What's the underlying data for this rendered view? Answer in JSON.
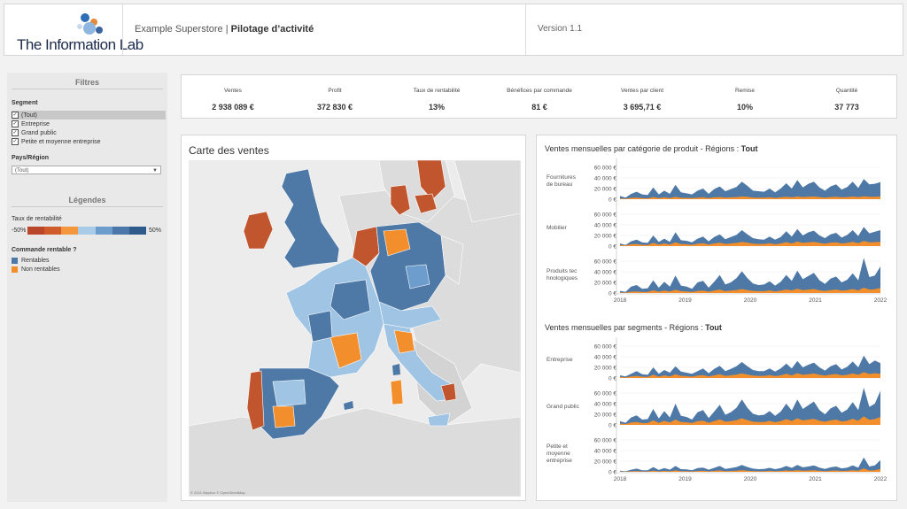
{
  "header": {
    "logo_text": "The Information Lab",
    "title_prefix": "Example Superstore",
    "title_sep": " | ",
    "title_main": "Pilotage d’activité",
    "version": "Version 1.1"
  },
  "sidebar": {
    "filters_title": "Filtres",
    "segment_label": "Segment",
    "segments": [
      "(Tout)",
      "Entreprise",
      "Grand public",
      "Petite et moyenne entreprise"
    ],
    "country_label": "Pays/Région",
    "country_value": "(Tout)",
    "legends_title": "Légendes",
    "profit_rate_label": "Taux de rentabilité",
    "profit_min": "-50%",
    "profit_max": "50%",
    "profit_colors": [
      "#b9472a",
      "#cf5c2a",
      "#f4963c",
      "#a8cbe8",
      "#6d9dcd",
      "#4b77ab",
      "#2f5b8c"
    ],
    "profitable_label": "Commande rentable ?",
    "profitable_items": [
      {
        "label": "Rentables",
        "color": "#4e79a7"
      },
      {
        "label": "Non rentables",
        "color": "#f28e2b"
      }
    ]
  },
  "kpis": [
    {
      "label": "Ventes",
      "value": "2 938 089 €"
    },
    {
      "label": "Profit",
      "value": "372 830 €"
    },
    {
      "label": "Taux de rentabilité",
      "value": "13%"
    },
    {
      "label": "Bénéfices par commande",
      "value": "81 €"
    },
    {
      "label": "Ventes par client",
      "value": "3 695,71 €"
    },
    {
      "label": "Remise",
      "value": "10%"
    },
    {
      "label": "Quantité",
      "value": "37 773"
    }
  ],
  "map": {
    "title": "Carte des ventes",
    "credit": "© 2021 Mapbox © OpenStreetMap",
    "colors": {
      "deep": "#4e79a7",
      "light": "#a0c4e3",
      "orange": "#f28e2b",
      "red": "#c0552e",
      "land": "#dcdcdc",
      "sea": "#eeeeee"
    }
  },
  "charts": {
    "category_title": "Ventes mensuelles par catégorie de produit - Régions : ",
    "category_region": "Tout",
    "segment_title": "Ventes mensuelles par segments - Régions : ",
    "segment_region": "Tout",
    "y_ticks": [
      "60 000 €",
      "40 000 €",
      "20 000 €",
      "0 €"
    ],
    "years": [
      "2018",
      "2019",
      "2020",
      "2021",
      "2022"
    ]
  },
  "chart_data": [
    {
      "type": "area",
      "title": "Ventes mensuelles par catégorie de produit - Régions : Tout",
      "x_range": [
        "2018-01",
        "2021-12"
      ],
      "ylim": [
        0,
        70000
      ],
      "series_colors": {
        "Rentables": "#4e79a7",
        "Non rentables": "#f28e2b"
      },
      "panels": [
        {
          "name": "Fournitures de bureau",
          "Rentables": [
            6000,
            3000,
            10000,
            14000,
            9000,
            8000,
            22000,
            9000,
            16000,
            10000,
            27000,
            13000,
            11000,
            9000,
            16000,
            20000,
            10000,
            19000,
            24000,
            15000,
            19000,
            23000,
            33000,
            25000,
            16000,
            15000,
            14000,
            20000,
            13000,
            20000,
            30000,
            20000,
            36000,
            22000,
            29000,
            33000,
            22000,
            16000,
            24000,
            28000,
            18000,
            23000,
            33000,
            21000,
            38000,
            28000,
            29000,
            32000
          ],
          "Non rentables": [
            1500,
            800,
            2500,
            3000,
            2000,
            1500,
            4000,
            2000,
            3500,
            2000,
            4500,
            2500,
            2500,
            2000,
            3000,
            3500,
            2000,
            3500,
            4000,
            3000,
            3500,
            4000,
            5000,
            4500,
            3000,
            3000,
            3000,
            3500,
            2500,
            3500,
            4500,
            3500,
            5000,
            4000,
            4500,
            5000,
            4000,
            3000,
            4000,
            4500,
            3500,
            4000,
            5000,
            4000,
            5500,
            4500,
            4500,
            5000
          ]
        },
        {
          "name": "Mobilier",
          "Rentables": [
            5000,
            2000,
            9000,
            12000,
            7000,
            6000,
            20000,
            8000,
            14000,
            8000,
            26000,
            11000,
            10000,
            7000,
            14000,
            18000,
            9000,
            17000,
            22000,
            13000,
            17000,
            21000,
            30000,
            22000,
            15000,
            13000,
            12000,
            18000,
            12000,
            17000,
            28000,
            18000,
            32000,
            20000,
            26000,
            29000,
            20000,
            15000,
            22000,
            25000,
            16000,
            21000,
            30000,
            19000,
            36000,
            24000,
            27000,
            30000
          ],
          "Non rentables": [
            2000,
            1200,
            3500,
            4000,
            2500,
            2000,
            6000,
            3000,
            5000,
            3000,
            7000,
            4000,
            3500,
            2500,
            4500,
            5500,
            3000,
            5000,
            6500,
            4000,
            5000,
            6000,
            8000,
            6500,
            4500,
            4000,
            4000,
            5500,
            3500,
            5000,
            7500,
            5000,
            8500,
            6000,
            7000,
            8000,
            6000,
            4500,
            6500,
            7000,
            5000,
            6000,
            8000,
            5500,
            9500,
            7000,
            7500,
            8000
          ]
        },
        {
          "name": "Produits technologiques",
          "Rentables": [
            4000,
            2000,
            12000,
            15000,
            8000,
            9000,
            24000,
            10000,
            21000,
            12000,
            33000,
            14000,
            12000,
            8000,
            20000,
            23000,
            10000,
            21000,
            34000,
            16000,
            20000,
            28000,
            41000,
            28000,
            18000,
            15000,
            16000,
            22000,
            14000,
            21000,
            34000,
            23000,
            42000,
            26000,
            32000,
            38000,
            24000,
            17000,
            27000,
            31000,
            20000,
            25000,
            37000,
            24000,
            66000,
            30000,
            33000,
            50000
          ],
          "Non rentables": [
            1000,
            800,
            2500,
            3000,
            2000,
            2000,
            5000,
            2500,
            4500,
            3000,
            6000,
            3500,
            3000,
            2000,
            4000,
            4500,
            2500,
            4500,
            6500,
            3500,
            4500,
            5500,
            7500,
            5500,
            4000,
            3500,
            3500,
            5000,
            3000,
            4500,
            6500,
            5000,
            8000,
            5500,
            6500,
            7500,
            5000,
            4000,
            5500,
            6500,
            4500,
            5500,
            7500,
            5000,
            10000,
            6500,
            7000,
            9500
          ]
        }
      ]
    },
    {
      "type": "area",
      "title": "Ventes mensuelles par segments - Régions : Tout",
      "x_range": [
        "2018-01",
        "2021-12"
      ],
      "ylim": [
        0,
        70000
      ],
      "series_colors": {
        "Rentables": "#4e79a7",
        "Non rentables": "#f28e2b"
      },
      "panels": [
        {
          "name": "Entreprise",
          "Rentables": [
            5000,
            3000,
            8000,
            13000,
            7000,
            6000,
            20000,
            8000,
            15000,
            10000,
            22000,
            12000,
            10000,
            8000,
            13000,
            18000,
            9000,
            17000,
            23000,
            13000,
            17000,
            22000,
            30000,
            22000,
            15000,
            13000,
            13000,
            18000,
            12000,
            18000,
            27000,
            18000,
            32000,
            20000,
            25000,
            29000,
            20000,
            14000,
            22000,
            26000,
            16000,
            21000,
            31000,
            20000,
            42000,
            26000,
            33000,
            28000
          ],
          "Non rentables": [
            2000,
            1000,
            3000,
            4000,
            2500,
            2000,
            6000,
            2500,
            5000,
            3000,
            7000,
            4000,
            3500,
            2500,
            4500,
            5500,
            3000,
            5000,
            7000,
            4000,
            5000,
            6500,
            8500,
            6500,
            4500,
            4000,
            4000,
            5500,
            3500,
            5000,
            8000,
            5000,
            9000,
            6000,
            7000,
            8500,
            6000,
            4500,
            6500,
            7500,
            5000,
            6000,
            8500,
            6000,
            11000,
            7500,
            9000,
            8000
          ]
        },
        {
          "name": "Grand public",
          "Rentables": [
            7000,
            4000,
            14000,
            18000,
            10000,
            11000,
            30000,
            12000,
            26000,
            14000,
            40000,
            17000,
            15000,
            10000,
            24000,
            28000,
            13000,
            25000,
            38000,
            19000,
            24000,
            32000,
            48000,
            32000,
            21000,
            18000,
            19000,
            26000,
            17000,
            25000,
            40000,
            27000,
            48000,
            30000,
            37000,
            44000,
            28000,
            20000,
            31000,
            36000,
            23000,
            29000,
            43000,
            28000,
            70000,
            34000,
            40000,
            64000
          ],
          "Non rentables": [
            2500,
            1500,
            4500,
            5500,
            3500,
            3500,
            8500,
            4000,
            7500,
            4500,
            10000,
            5500,
            5000,
            3500,
            7000,
            8000,
            4000,
            7000,
            10500,
            6000,
            7000,
            9000,
            12500,
            9000,
            6000,
            5500,
            5500,
            7500,
            5000,
            7000,
            11000,
            7500,
            12500,
            8500,
            10000,
            11500,
            8000,
            6000,
            8500,
            10000,
            6500,
            8000,
            11500,
            8000,
            16000,
            9500,
            11000,
            15000
          ]
        },
        {
          "name": "Petite et moyenne entreprise",
          "Rentables": [
            2000,
            1000,
            4000,
            6000,
            3000,
            3000,
            9000,
            3500,
            7000,
            4000,
            11000,
            5000,
            4500,
            3000,
            7000,
            8000,
            4000,
            7500,
            11000,
            5500,
            7000,
            9000,
            13000,
            9000,
            6000,
            5000,
            5500,
            7500,
            5000,
            7000,
            11000,
            7500,
            13000,
            8500,
            10000,
            12000,
            8000,
            5500,
            8500,
            10000,
            6500,
            8000,
            12000,
            8000,
            27000,
            10000,
            12000,
            22000
          ],
          "Non rentables": [
            600,
            300,
            1000,
            1500,
            800,
            800,
            2200,
            900,
            1800,
            1000,
            2700,
            1200,
            1100,
            800,
            1700,
            2000,
            1000,
            1900,
            2700,
            1400,
            1700,
            2200,
            3200,
            2200,
            1500,
            1300,
            1400,
            1900,
            1200,
            1700,
            2700,
            1900,
            3200,
            2100,
            2500,
            3000,
            2000,
            1400,
            2100,
            2500,
            1600,
            2000,
            3000,
            2000,
            6500,
            2500,
            3000,
            5500
          ]
        }
      ]
    }
  ]
}
